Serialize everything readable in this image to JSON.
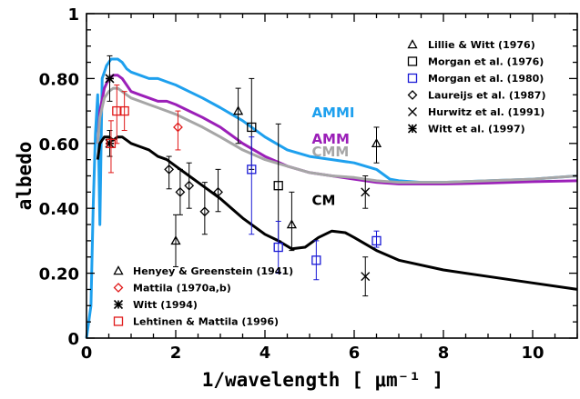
{
  "chart_data": {
    "type": "line",
    "xlabel": "1/wavelength [ μm⁻¹ ]",
    "ylabel": "albedo",
    "xlim": [
      0,
      11
    ],
    "ylim": [
      0,
      1
    ],
    "x_ticks": [
      {
        "v": 0,
        "label": "0"
      },
      {
        "v": 2,
        "label": "2"
      },
      {
        "v": 4,
        "label": "4"
      },
      {
        "v": 6,
        "label": "6"
      },
      {
        "v": 8,
        "label": "8"
      },
      {
        "v": 10,
        "label": "10"
      }
    ],
    "y_ticks": [
      {
        "v": 0,
        "label": "0"
      },
      {
        "v": 0.2,
        "label": "0.20"
      },
      {
        "v": 0.4,
        "label": "0.40"
      },
      {
        "v": 0.6,
        "label": "0.60"
      },
      {
        "v": 0.8,
        "label": "0.80"
      },
      {
        "v": 1,
        "label": "1"
      }
    ],
    "series": [
      {
        "name": "AMMI",
        "color": "#1ea0ee",
        "label_at": [
          5.05,
          0.68
        ],
        "x": [
          0.0,
          0.1,
          0.15,
          0.2,
          0.25,
          0.3,
          0.35,
          0.4,
          0.45,
          0.5,
          0.55,
          0.6,
          0.7,
          0.8,
          0.9,
          1.0,
          1.2,
          1.4,
          1.6,
          1.8,
          2.0,
          2.3,
          2.6,
          3.0,
          3.5,
          4.0,
          4.5,
          5.0,
          5.5,
          6.0,
          6.5,
          6.8,
          7.0,
          7.5,
          8.0,
          9.0,
          10.0,
          11.0
        ],
        "y": [
          0.0,
          0.1,
          0.4,
          0.63,
          0.75,
          0.35,
          0.8,
          0.82,
          0.84,
          0.85,
          0.86,
          0.86,
          0.86,
          0.85,
          0.83,
          0.82,
          0.81,
          0.8,
          0.8,
          0.79,
          0.78,
          0.76,
          0.74,
          0.71,
          0.67,
          0.62,
          0.58,
          0.56,
          0.55,
          0.54,
          0.52,
          0.49,
          0.485,
          0.48,
          0.48,
          0.485,
          0.49,
          0.5
        ]
      },
      {
        "name": "AMM",
        "color": "#9b1fb8",
        "label_at": [
          5.05,
          0.6
        ],
        "x": [
          0.25,
          0.3,
          0.4,
          0.5,
          0.6,
          0.7,
          0.8,
          0.9,
          1.0,
          1.2,
          1.4,
          1.6,
          1.8,
          2.0,
          2.3,
          2.6,
          3.0,
          3.5,
          4.0,
          4.5,
          5.0,
          5.5,
          6.0,
          6.5,
          7.0,
          8.0,
          9.0,
          10.0,
          11.0
        ],
        "y": [
          0.6,
          0.7,
          0.77,
          0.8,
          0.81,
          0.81,
          0.8,
          0.78,
          0.76,
          0.75,
          0.74,
          0.73,
          0.73,
          0.72,
          0.7,
          0.68,
          0.65,
          0.6,
          0.56,
          0.53,
          0.51,
          0.5,
          0.49,
          0.48,
          0.475,
          0.475,
          0.478,
          0.482,
          0.485
        ]
      },
      {
        "name": "CMM",
        "color": "#a6a6a6",
        "label_at": [
          5.05,
          0.56
        ],
        "x": [
          0.25,
          0.3,
          0.4,
          0.5,
          0.6,
          0.7,
          0.8,
          0.9,
          1.0,
          1.2,
          1.4,
          1.6,
          1.8,
          2.0,
          2.3,
          2.6,
          3.0,
          3.5,
          4.0,
          4.5,
          5.0,
          5.5,
          6.0,
          6.5,
          7.0,
          8.0,
          9.0,
          10.0,
          11.0
        ],
        "y": [
          0.6,
          0.68,
          0.74,
          0.76,
          0.77,
          0.77,
          0.76,
          0.75,
          0.74,
          0.73,
          0.72,
          0.71,
          0.7,
          0.69,
          0.67,
          0.65,
          0.62,
          0.58,
          0.55,
          0.53,
          0.51,
          0.5,
          0.495,
          0.485,
          0.48,
          0.48,
          0.485,
          0.49,
          0.5
        ]
      },
      {
        "name": "CM",
        "color": "#000000",
        "label_at": [
          5.05,
          0.41
        ],
        "x": [
          0.25,
          0.3,
          0.4,
          0.5,
          0.6,
          0.7,
          0.8,
          0.9,
          1.0,
          1.2,
          1.4,
          1.6,
          1.8,
          2.0,
          2.3,
          2.6,
          3.0,
          3.5,
          4.0,
          4.3,
          4.6,
          4.9,
          5.2,
          5.5,
          5.8,
          6.0,
          6.5,
          7.0,
          8.0,
          9.0,
          10.0,
          11.0
        ],
        "y": [
          0.55,
          0.6,
          0.62,
          0.62,
          0.61,
          0.62,
          0.62,
          0.61,
          0.6,
          0.59,
          0.58,
          0.56,
          0.55,
          0.53,
          0.5,
          0.47,
          0.43,
          0.37,
          0.32,
          0.3,
          0.275,
          0.28,
          0.31,
          0.33,
          0.325,
          0.31,
          0.27,
          0.24,
          0.21,
          0.19,
          0.17,
          0.15
        ]
      }
    ],
    "observations": [
      {
        "name": "Lillie & Witt (1976)",
        "marker": "triangle",
        "color": "#000000",
        "legend_group": "upper",
        "points": [
          [
            3.4,
            0.7,
            0.77,
            0.6
          ],
          [
            4.6,
            0.35,
            0.45,
            0.27
          ],
          [
            6.5,
            0.6,
            0.65,
            0.54
          ],
          [
            2.0,
            0.3,
            0.38,
            0.22
          ]
        ]
      },
      {
        "name": "Morgan et al. (1976)",
        "marker": "square",
        "color": "#000000",
        "legend_group": "upper",
        "points": [
          [
            3.7,
            0.65,
            0.8,
            0.52
          ],
          [
            4.3,
            0.47,
            0.66,
            0.3
          ]
        ]
      },
      {
        "name": "Morgan et al. (1980)",
        "marker": "square",
        "color": "#1a1ad6",
        "legend_group": "upper",
        "points": [
          [
            3.7,
            0.52,
            0.62,
            0.32
          ],
          [
            4.3,
            0.28,
            0.36,
            0.2
          ],
          [
            5.15,
            0.24,
            0.3,
            0.18
          ],
          [
            6.5,
            0.3,
            0.33,
            0.28
          ]
        ]
      },
      {
        "name": "Laureijs et al. (1987)",
        "marker": "diamond",
        "color": "#000000",
        "legend_group": "upper",
        "points": [
          [
            1.85,
            0.52,
            0.56,
            0.46
          ],
          [
            2.1,
            0.45,
            0.52,
            0.38
          ],
          [
            2.3,
            0.47,
            0.54,
            0.4
          ],
          [
            2.65,
            0.39,
            0.48,
            0.32
          ],
          [
            2.95,
            0.45,
            0.52,
            0.39
          ]
        ]
      },
      {
        "name": "Hurwitz et al. (1991)",
        "marker": "x",
        "color": "#000000",
        "legend_group": "upper",
        "points": [
          [
            6.25,
            0.45,
            0.5,
            0.4
          ],
          [
            6.25,
            0.19,
            0.25,
            0.13
          ]
        ]
      },
      {
        "name": "Witt et al. (1997)",
        "marker": "asterisk",
        "color": "#000000",
        "legend_group": "upper",
        "points": []
      },
      {
        "name": "Henyey & Greenstein (1941)",
        "marker": "triangle",
        "color": "#000000",
        "legend_group": "lower",
        "points": []
      },
      {
        "name": "Mattila (1970a,b)",
        "marker": "diamond",
        "color": "#e01818",
        "legend_group": "lower",
        "points": [
          [
            2.05,
            0.65,
            0.7,
            0.58
          ]
        ]
      },
      {
        "name": "Witt (1994)",
        "marker": "asterisk",
        "color": "#000000",
        "legend_group": "lower",
        "points": [
          [
            0.52,
            0.8,
            0.87,
            0.73
          ],
          [
            0.52,
            0.6,
            0.64,
            0.56
          ]
        ]
      },
      {
        "name": "Lehtinen & Mattila (1996)",
        "marker": "square",
        "color": "#e01818",
        "legend_group": "lower",
        "points": [
          [
            0.55,
            0.6,
            0.67,
            0.51
          ],
          [
            0.68,
            0.7,
            0.78,
            0.6
          ],
          [
            0.85,
            0.7,
            0.76,
            0.64
          ]
        ]
      }
    ]
  }
}
